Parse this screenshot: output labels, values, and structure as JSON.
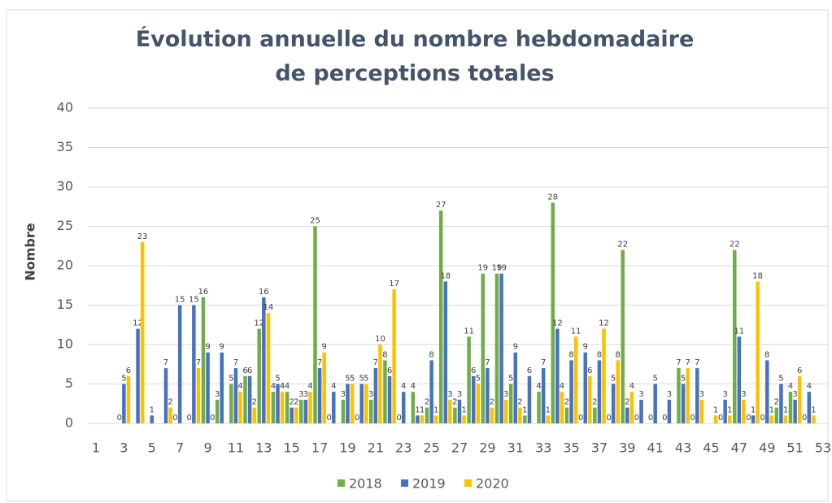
{
  "chart_data": {
    "type": "bar",
    "title": "Évolution annuelle du nombre hebdomadaire de perceptions totales",
    "y_label": "Nombre",
    "categories": [
      1,
      null,
      3,
      null,
      5,
      null,
      7,
      null,
      9,
      null,
      11,
      null,
      13,
      null,
      15,
      null,
      17,
      null,
      19,
      null,
      21,
      null,
      23,
      null,
      25,
      null,
      27,
      null,
      29,
      null,
      31,
      null,
      33,
      null,
      35,
      null,
      37,
      null,
      39,
      null,
      41,
      null,
      43,
      null,
      45,
      null,
      47,
      null,
      49,
      null,
      51,
      null,
      53
    ],
    "series": [
      {
        "name": "2018",
        "color": "#70ad47",
        "values": [
          null,
          null,
          0,
          null,
          null,
          null,
          0,
          0,
          16,
          3,
          5,
          6,
          12,
          4,
          4,
          3,
          25,
          0,
          3,
          0,
          3,
          8,
          0,
          4,
          2,
          27,
          2,
          11,
          19,
          19,
          5,
          1,
          4,
          28,
          2,
          0,
          2,
          0,
          22,
          0,
          0,
          0,
          7,
          0,
          null,
          0,
          22,
          0,
          0,
          2,
          4,
          0,
          null
        ]
      },
      {
        "name": "2019",
        "color": "#4472c4",
        "values": [
          null,
          null,
          5,
          12,
          1,
          7,
          15,
          15,
          9,
          9,
          7,
          6,
          16,
          5,
          2,
          3,
          7,
          4,
          5,
          5,
          7,
          6,
          4,
          1,
          8,
          18,
          3,
          6,
          7,
          19,
          9,
          6,
          7,
          12,
          8,
          9,
          8,
          5,
          2,
          3,
          5,
          3,
          5,
          7,
          null,
          3,
          11,
          1,
          8,
          5,
          3,
          4,
          null
        ]
      },
      {
        "name": "2020",
        "color": "#ffc000",
        "values": [
          null,
          null,
          6,
          23,
          null,
          2,
          null,
          7,
          0,
          null,
          4,
          2,
          14,
          4,
          2,
          4,
          9,
          null,
          5,
          5,
          10,
          17,
          null,
          1,
          1,
          3,
          1,
          5,
          2,
          3,
          2,
          null,
          1,
          4,
          11,
          6,
          12,
          8,
          4,
          null,
          null,
          null,
          7,
          3,
          1,
          1,
          3,
          18,
          1,
          1,
          6,
          1,
          null
        ]
      }
    ],
    "ylim": [
      0,
      40
    ],
    "yticks": [
      0,
      5,
      10,
      15,
      20,
      25,
      30,
      35,
      40
    ],
    "grid": true,
    "legend": "bottom"
  }
}
